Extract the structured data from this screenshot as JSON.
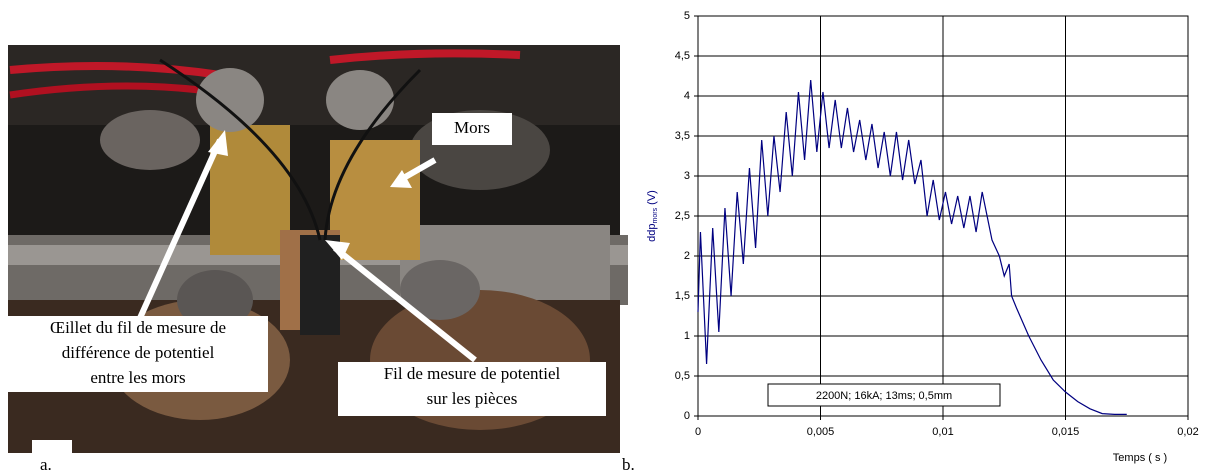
{
  "panel_labels": [
    "a.",
    "b."
  ],
  "photo_annotations": [
    {
      "lines": [
        "Mors"
      ]
    },
    {
      "lines": [
        "Œillet du fil de mesure de",
        "différence de potentiel",
        "entre les mors"
      ]
    },
    {
      "lines": [
        "Fil de mesure de potentiel",
        "sur les pièces"
      ]
    }
  ],
  "chart_data": {
    "type": "line",
    "ylabel": {
      "main": "ddp",
      "sub": "mors",
      "unit": " (V)"
    },
    "xlabel": "Temps ( s )",
    "annotation": "2200N; 16kA; 13ms; 0,5mm",
    "x": [
      0,
      0.0001,
      0.00035,
      0.0006,
      0.00085,
      0.0011,
      0.00135,
      0.0016,
      0.00185,
      0.0021,
      0.00235,
      0.0026,
      0.00285,
      0.0031,
      0.00335,
      0.0036,
      0.00385,
      0.0041,
      0.00435,
      0.0046,
      0.00485,
      0.0051,
      0.00535,
      0.0056,
      0.00585,
      0.0061,
      0.00635,
      0.0066,
      0.00685,
      0.0071,
      0.00735,
      0.0076,
      0.00785,
      0.0081,
      0.00835,
      0.0086,
      0.00885,
      0.0091,
      0.00935,
      0.0096,
      0.00985,
      0.0101,
      0.01035,
      0.0106,
      0.01085,
      0.0111,
      0.01135,
      0.0116,
      0.012,
      0.0123,
      0.0125,
      0.0127,
      0.0128,
      0.013,
      0.0135,
      0.014,
      0.0145,
      0.015,
      0.0155,
      0.016,
      0.0165,
      0.017,
      0.0175
    ],
    "series": [
      {
        "color": "#000080",
        "values": [
          1.3,
          2.3,
          0.65,
          2.35,
          1.05,
          2.6,
          1.5,
          2.8,
          1.9,
          3.1,
          2.1,
          3.45,
          2.5,
          3.5,
          2.8,
          3.8,
          3.0,
          4.05,
          3.2,
          4.2,
          3.3,
          4.05,
          3.35,
          3.95,
          3.35,
          3.85,
          3.3,
          3.7,
          3.2,
          3.65,
          3.1,
          3.55,
          3.0,
          3.55,
          2.95,
          3.45,
          2.9,
          3.2,
          2.5,
          2.95,
          2.45,
          2.8,
          2.4,
          2.75,
          2.35,
          2.75,
          2.3,
          2.8,
          2.2,
          2.0,
          1.75,
          1.9,
          1.5,
          1.35,
          1.0,
          0.7,
          0.45,
          0.3,
          0.18,
          0.09,
          0.03,
          0.02,
          0.02
        ]
      }
    ],
    "xlim": [
      0,
      0.02
    ],
    "xticks": [
      0,
      {
        "value": 0.005,
        "label": "0,005"
      },
      {
        "value": 0.01,
        "label": "0,01"
      },
      {
        "value": 0.015,
        "label": "0,015"
      },
      {
        "value": 0.02,
        "label": "0,02"
      }
    ],
    "ylim": [
      0,
      5
    ],
    "yticks": [
      0,
      {
        "value": 0.5,
        "label": "0,5"
      },
      1,
      {
        "value": 1.5,
        "label": "1,5"
      },
      2,
      {
        "value": 2.5,
        "label": "2,5"
      },
      3,
      {
        "value": 3.5,
        "label": "3,5"
      },
      4,
      {
        "value": 4.5,
        "label": "4,5"
      },
      5
    ],
    "grid": true
  }
}
